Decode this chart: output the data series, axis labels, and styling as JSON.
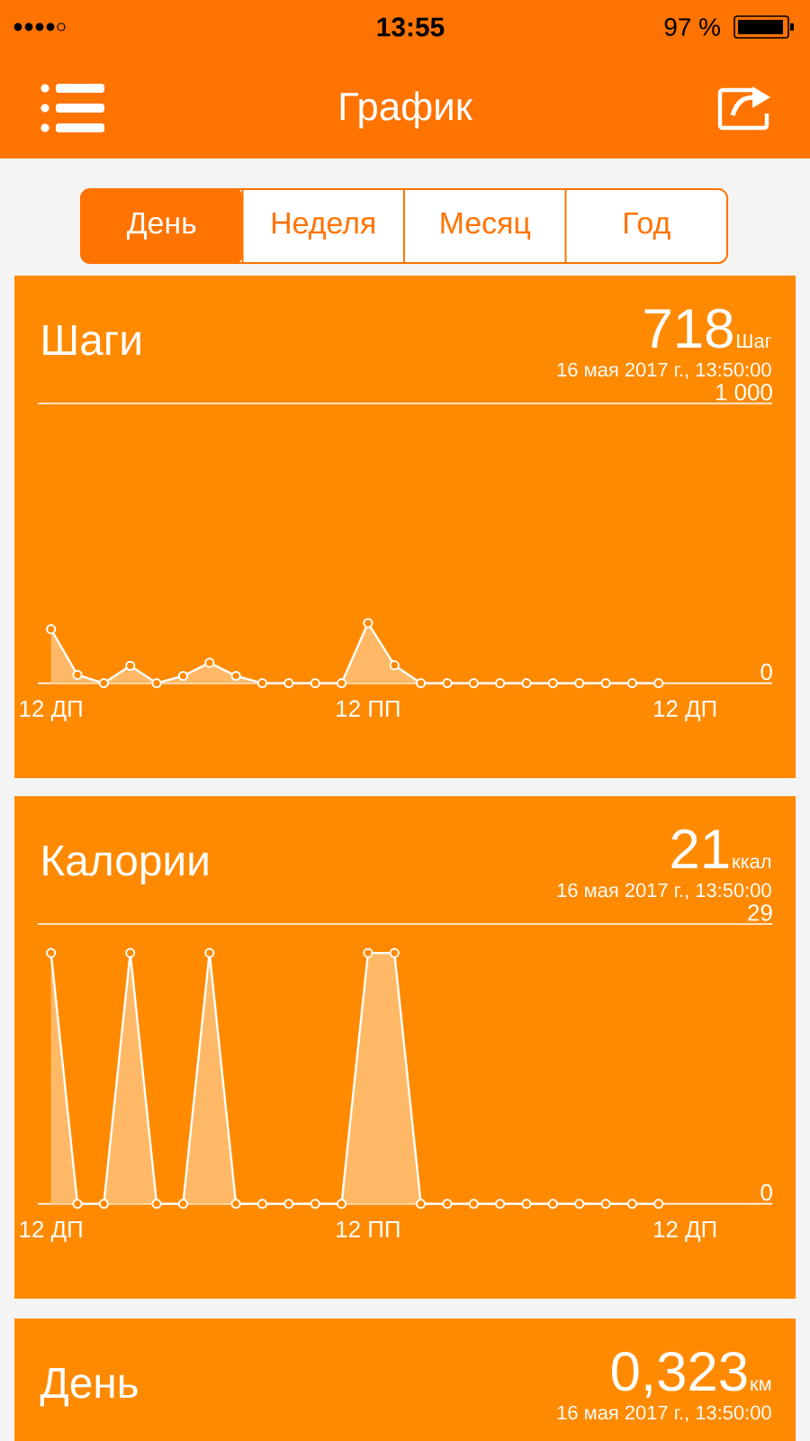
{
  "chart_data": [
    {
      "type": "other",
      "title": "График",
      "annotations": [
        "13:55",
        "97 %",
        "День",
        "Неделя",
        "Месяц",
        "Год"
      ]
    },
    {
      "type": "area",
      "title": "Шаги",
      "annotations": [
        "718",
        "Шаг",
        "16 мая 2017 г., 13:50:00"
      ],
      "categories": [
        "12 ДП",
        null,
        null,
        null,
        null,
        null,
        null,
        null,
        null,
        null,
        null,
        null,
        "12 ПП",
        null,
        null,
        null,
        null,
        null,
        null,
        null,
        null,
        null,
        null,
        null,
        "12 ДП"
      ],
      "ylim": [
        0,
        1000
      ],
      "yticks": [
        0,
        {
          "value": 1000,
          "label": "1 000"
        }
      ],
      "marker": "circle",
      "series": [
        {
          "color": "#ffffff",
          "values": [
            193,
            30,
            0,
            62,
            0,
            26,
            73,
            26,
            0,
            0,
            0,
            0,
            215,
            64,
            0,
            0,
            0,
            0,
            0,
            0,
            0,
            0,
            0,
            0,
            null
          ]
        }
      ]
    },
    {
      "type": "area",
      "title": "Калории",
      "annotations": [
        "21",
        "ккал",
        "16 мая 2017 г., 13:50:00"
      ],
      "categories": [
        "12 ДП",
        null,
        null,
        null,
        null,
        null,
        null,
        null,
        null,
        null,
        null,
        null,
        "12 ПП",
        null,
        null,
        null,
        null,
        null,
        null,
        null,
        null,
        null,
        null,
        null,
        "12 ДП"
      ],
      "ylim": [
        0,
        29
      ],
      "yticks": [
        0,
        29
      ],
      "marker": "circle",
      "series": [
        {
          "color": "#ffffff",
          "values": [
            26,
            0,
            0,
            26,
            0,
            0,
            26,
            0,
            0,
            0,
            0,
            0,
            26,
            26,
            0,
            0,
            0,
            0,
            0,
            0,
            0,
            0,
            0,
            0,
            null
          ]
        }
      ]
    },
    {
      "type": "other",
      "title": "День",
      "annotations": [
        "0,323",
        "км",
        "16 мая 2017 г., 13:50:00"
      ]
    }
  ]
}
